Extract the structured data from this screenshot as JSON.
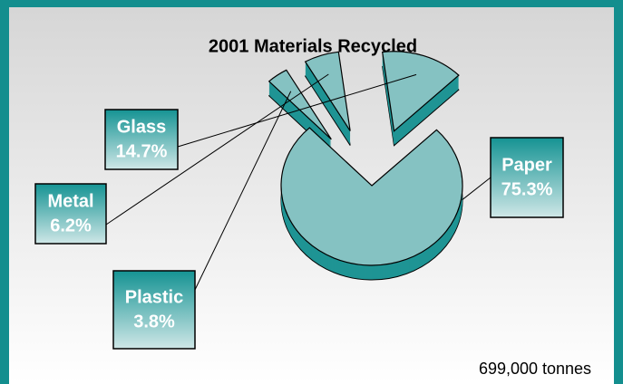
{
  "chart_data": {
    "type": "pie",
    "title": "2001 Materials Recycled",
    "categories": [
      "Paper",
      "Plastic",
      "Metal",
      "Glass"
    ],
    "values": [
      75.3,
      3.8,
      6.2,
      14.7
    ],
    "value_labels": [
      "75.3%",
      "3.8%",
      "6.2%",
      "14.7%"
    ],
    "color": "#85c2c2",
    "side_color": "#1f9494",
    "annotation": "699,000 tonnes"
  }
}
